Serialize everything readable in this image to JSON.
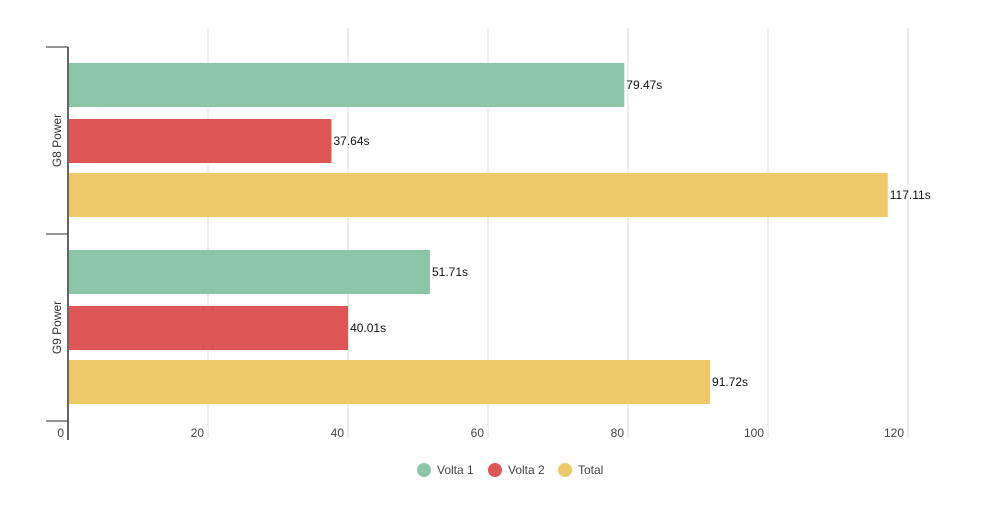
{
  "chart_data": {
    "type": "bar",
    "orientation": "horizontal",
    "categories": [
      "G8 Power",
      "G9 Power"
    ],
    "series": [
      {
        "name": "Volta 1",
        "values": [
          79.47,
          51.71
        ],
        "labels": [
          "79.47s",
          "51.71s"
        ],
        "color": "#8dc5a9"
      },
      {
        "name": "Volta 2",
        "values": [
          37.64,
          40.01
        ],
        "labels": [
          "37.64s",
          "40.01s"
        ],
        "color": "#dd5555"
      },
      {
        "name": "Total",
        "values": [
          117.11,
          91.72
        ],
        "labels": [
          "117.11s",
          "91.72s"
        ],
        "color": "#eec96a"
      }
    ],
    "xticks": [
      0,
      20,
      40,
      60,
      80,
      100,
      120
    ],
    "xlim": [
      0,
      120
    ],
    "grid": true,
    "legend": "bottom-center",
    "title": "",
    "xlabel": "",
    "ylabel": ""
  }
}
